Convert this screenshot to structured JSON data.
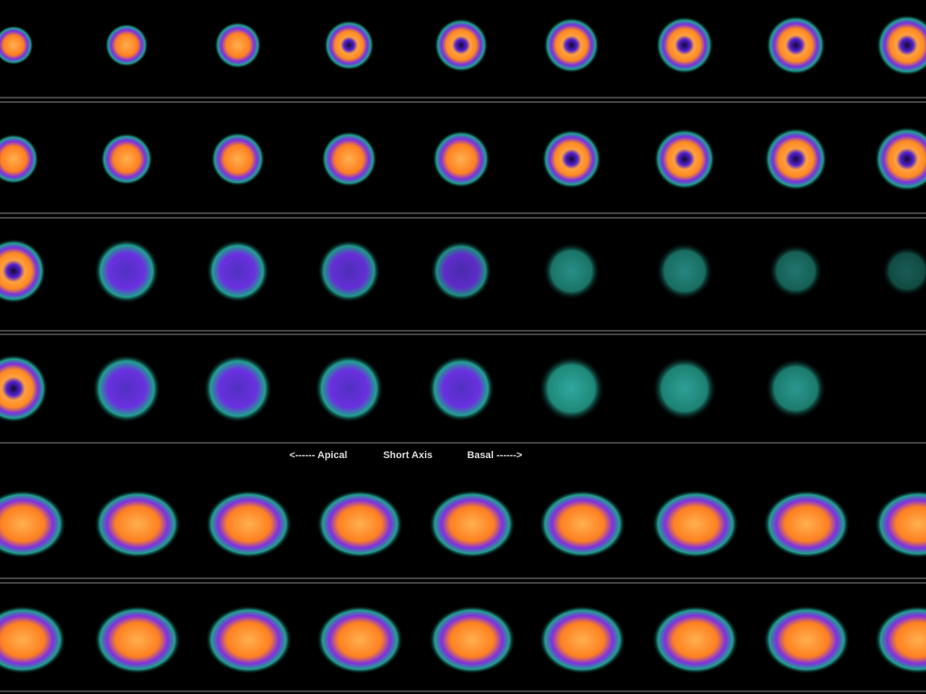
{
  "labels": {
    "apical": "<------ Apical",
    "axis": "Short Axis",
    "basal": "Basal ------>"
  }
}
